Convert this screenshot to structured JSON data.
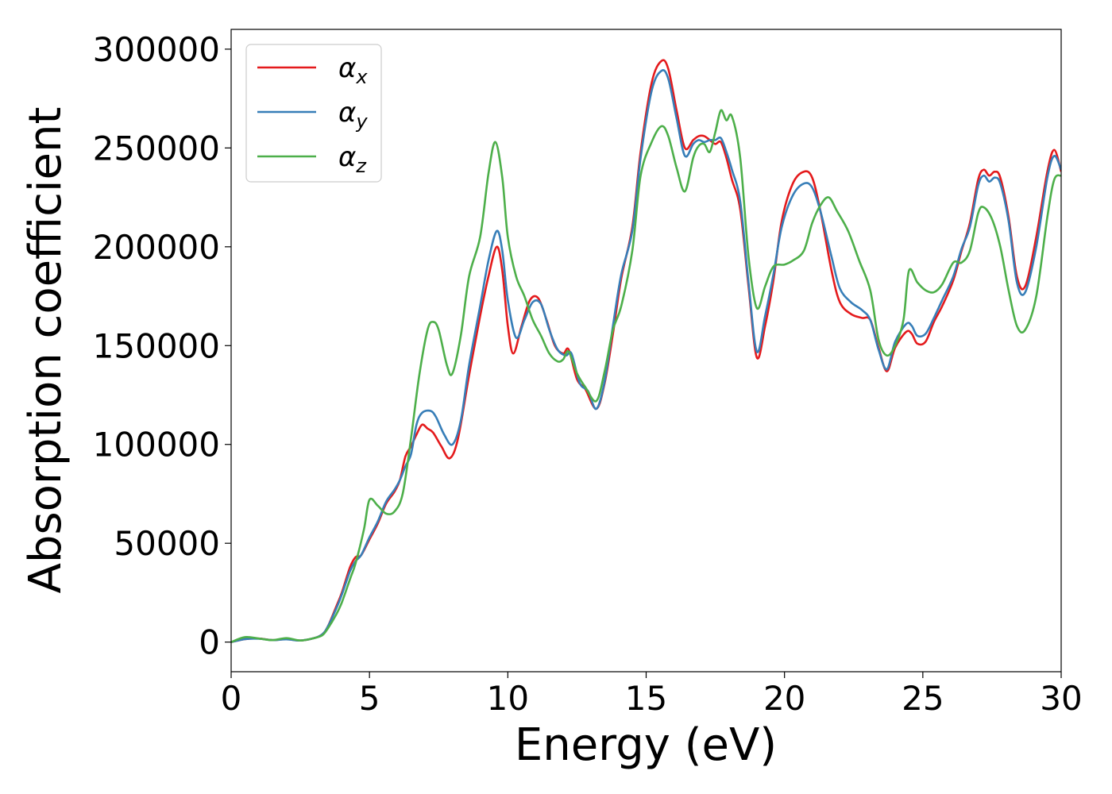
{
  "chart_data": {
    "type": "line",
    "title": "",
    "xlabel": "Energy (eV)",
    "ylabel": "Absorption coefficient",
    "xlim": [
      0,
      30
    ],
    "ylim": [
      -15000,
      310000
    ],
    "xticks": [
      0,
      5,
      10,
      15,
      20,
      25,
      30
    ],
    "yticks": [
      0,
      50000,
      100000,
      150000,
      200000,
      250000,
      300000
    ],
    "xtick_labels": [
      "0",
      "5",
      "10",
      "15",
      "20",
      "25",
      "30"
    ],
    "ytick_labels": [
      "0",
      "50000",
      "100000",
      "150000",
      "200000",
      "250000",
      "300000"
    ],
    "grid": false,
    "legend_position": "top-left",
    "series": [
      {
        "name": "αx",
        "name_base": "α",
        "name_sub": "x",
        "color": "#e41a1c",
        "points": [
          [
            0,
            0
          ],
          [
            0.5,
            1500
          ],
          [
            1,
            1800
          ],
          [
            1.5,
            1000
          ],
          [
            2,
            1500
          ],
          [
            2.5,
            800
          ],
          [
            3,
            2000
          ],
          [
            3.3,
            4000
          ],
          [
            3.5,
            8000
          ],
          [
            3.8,
            18000
          ],
          [
            4,
            25000
          ],
          [
            4.3,
            38000
          ],
          [
            4.5,
            43000
          ],
          [
            4.7,
            44000
          ],
          [
            5,
            52000
          ],
          [
            5.3,
            60000
          ],
          [
            5.6,
            70000
          ],
          [
            5.9,
            76000
          ],
          [
            6.1,
            82000
          ],
          [
            6.3,
            94000
          ],
          [
            6.5,
            99000
          ],
          [
            6.7,
            105000
          ],
          [
            6.9,
            110000
          ],
          [
            7.1,
            108000
          ],
          [
            7.3,
            106000
          ],
          [
            7.6,
            99000
          ],
          [
            7.9,
            93000
          ],
          [
            8.2,
            103000
          ],
          [
            8.6,
            135000
          ],
          [
            9,
            165000
          ],
          [
            9.3,
            185000
          ],
          [
            9.6,
            200000
          ],
          [
            9.8,
            188000
          ],
          [
            10,
            160000
          ],
          [
            10.2,
            146000
          ],
          [
            10.5,
            160000
          ],
          [
            10.8,
            173000
          ],
          [
            11.1,
            174000
          ],
          [
            11.4,
            163000
          ],
          [
            11.7,
            150000
          ],
          [
            12,
            146000
          ],
          [
            12.2,
            148000
          ],
          [
            12.5,
            133000
          ],
          [
            12.8,
            128000
          ],
          [
            13.2,
            118000
          ],
          [
            13.5,
            131000
          ],
          [
            13.8,
            156000
          ],
          [
            14.1,
            184000
          ],
          [
            14.5,
            210000
          ],
          [
            14.8,
            248000
          ],
          [
            15.2,
            283000
          ],
          [
            15.55,
            294000
          ],
          [
            15.8,
            290000
          ],
          [
            16.1,
            269000
          ],
          [
            16.4,
            250000
          ],
          [
            16.7,
            254000
          ],
          [
            16.9,
            256000
          ],
          [
            17.1,
            256000
          ],
          [
            17.3,
            254000
          ],
          [
            17.5,
            252000
          ],
          [
            17.7,
            253000
          ],
          [
            17.9,
            245000
          ],
          [
            18.1,
            234000
          ],
          [
            18.4,
            219000
          ],
          [
            18.7,
            180000
          ],
          [
            19,
            144000
          ],
          [
            19.3,
            160000
          ],
          [
            19.6,
            183000
          ],
          [
            19.9,
            213000
          ],
          [
            20.3,
            232000
          ],
          [
            20.7,
            238000
          ],
          [
            21,
            235000
          ],
          [
            21.3,
            218000
          ],
          [
            21.7,
            188000
          ],
          [
            22,
            172000
          ],
          [
            22.4,
            166000
          ],
          [
            22.8,
            164000
          ],
          [
            23.1,
            163000
          ],
          [
            23.4,
            149000
          ],
          [
            23.7,
            137000
          ],
          [
            24,
            149000
          ],
          [
            24.4,
            157000
          ],
          [
            24.6,
            156000
          ],
          [
            24.8,
            151000
          ],
          [
            25.1,
            152000
          ],
          [
            25.4,
            162000
          ],
          [
            25.7,
            170000
          ],
          [
            26.1,
            183000
          ],
          [
            26.4,
            198000
          ],
          [
            26.7,
            212000
          ],
          [
            27,
            234000
          ],
          [
            27.2,
            239000
          ],
          [
            27.4,
            236000
          ],
          [
            27.6,
            238000
          ],
          [
            27.8,
            235000
          ],
          [
            28.1,
            215000
          ],
          [
            28.4,
            185000
          ],
          [
            28.7,
            180000
          ],
          [
            29.1,
            205000
          ],
          [
            29.5,
            238000
          ],
          [
            29.75,
            249000
          ],
          [
            30,
            238000
          ]
        ]
      },
      {
        "name": "αy",
        "name_base": "α",
        "name_sub": "y",
        "color": "#377eb8",
        "points": [
          [
            0,
            0
          ],
          [
            0.5,
            1500
          ],
          [
            1,
            1700
          ],
          [
            1.5,
            1000
          ],
          [
            2,
            1400
          ],
          [
            2.5,
            800
          ],
          [
            3,
            2000
          ],
          [
            3.3,
            4000
          ],
          [
            3.5,
            8000
          ],
          [
            3.8,
            17000
          ],
          [
            4,
            24000
          ],
          [
            4.3,
            36000
          ],
          [
            4.5,
            41000
          ],
          [
            4.7,
            44000
          ],
          [
            5,
            53000
          ],
          [
            5.3,
            61000
          ],
          [
            5.6,
            71000
          ],
          [
            5.9,
            77000
          ],
          [
            6.1,
            82000
          ],
          [
            6.3,
            89000
          ],
          [
            6.5,
            95000
          ],
          [
            6.7,
            110000
          ],
          [
            6.9,
            116000
          ],
          [
            7.2,
            117000
          ],
          [
            7.4,
            114000
          ],
          [
            7.7,
            105000
          ],
          [
            8,
            100000
          ],
          [
            8.3,
            112000
          ],
          [
            8.6,
            140000
          ],
          [
            9,
            170000
          ],
          [
            9.3,
            193000
          ],
          [
            9.6,
            208000
          ],
          [
            9.8,
            198000
          ],
          [
            10,
            173000
          ],
          [
            10.3,
            154000
          ],
          [
            10.6,
            163000
          ],
          [
            10.9,
            172000
          ],
          [
            11.2,
            171000
          ],
          [
            11.5,
            158000
          ],
          [
            11.8,
            148000
          ],
          [
            12.1,
            145000
          ],
          [
            12.3,
            146000
          ],
          [
            12.6,
            131000
          ],
          [
            12.9,
            127000
          ],
          [
            13.2,
            118000
          ],
          [
            13.5,
            132000
          ],
          [
            13.8,
            160000
          ],
          [
            14.1,
            186000
          ],
          [
            14.5,
            208000
          ],
          [
            14.8,
            245000
          ],
          [
            15.2,
            279000
          ],
          [
            15.55,
            289000
          ],
          [
            15.8,
            285000
          ],
          [
            16.1,
            265000
          ],
          [
            16.4,
            246000
          ],
          [
            16.7,
            252000
          ],
          [
            16.9,
            254000
          ],
          [
            17.1,
            253000
          ],
          [
            17.3,
            254000
          ],
          [
            17.5,
            254000
          ],
          [
            17.7,
            255000
          ],
          [
            17.9,
            248000
          ],
          [
            18.1,
            239000
          ],
          [
            18.4,
            223000
          ],
          [
            18.7,
            182000
          ],
          [
            19,
            147000
          ],
          [
            19.3,
            165000
          ],
          [
            19.6,
            186000
          ],
          [
            19.9,
            210000
          ],
          [
            20.3,
            226000
          ],
          [
            20.7,
            232000
          ],
          [
            21,
            230000
          ],
          [
            21.3,
            218000
          ],
          [
            21.7,
            195000
          ],
          [
            22,
            179000
          ],
          [
            22.4,
            172000
          ],
          [
            22.8,
            168000
          ],
          [
            23.1,
            163000
          ],
          [
            23.4,
            148000
          ],
          [
            23.7,
            138000
          ],
          [
            24,
            152000
          ],
          [
            24.4,
            161000
          ],
          [
            24.6,
            160000
          ],
          [
            24.8,
            155000
          ],
          [
            25.1,
            156000
          ],
          [
            25.4,
            164000
          ],
          [
            25.7,
            173000
          ],
          [
            26.1,
            185000
          ],
          [
            26.4,
            199000
          ],
          [
            26.7,
            210000
          ],
          [
            27,
            231000
          ],
          [
            27.2,
            236000
          ],
          [
            27.4,
            233000
          ],
          [
            27.6,
            235000
          ],
          [
            27.8,
            232000
          ],
          [
            28.1,
            213000
          ],
          [
            28.4,
            182000
          ],
          [
            28.7,
            177000
          ],
          [
            29.1,
            200000
          ],
          [
            29.5,
            235000
          ],
          [
            29.75,
            246000
          ],
          [
            30,
            239000
          ]
        ]
      },
      {
        "name": "αz",
        "name_base": "α",
        "name_sub": "z",
        "color": "#4daf4a",
        "points": [
          [
            0,
            0
          ],
          [
            0.5,
            2500
          ],
          [
            1,
            1800
          ],
          [
            1.5,
            1000
          ],
          [
            2,
            2000
          ],
          [
            2.5,
            800
          ],
          [
            3,
            2000
          ],
          [
            3.3,
            3500
          ],
          [
            3.5,
            7000
          ],
          [
            3.8,
            14000
          ],
          [
            4,
            20000
          ],
          [
            4.3,
            32000
          ],
          [
            4.5,
            40000
          ],
          [
            4.8,
            57000
          ],
          [
            5,
            72000
          ],
          [
            5.3,
            69000
          ],
          [
            5.6,
            65000
          ],
          [
            5.9,
            66000
          ],
          [
            6.2,
            75000
          ],
          [
            6.5,
            103000
          ],
          [
            6.8,
            135000
          ],
          [
            7.1,
            158000
          ],
          [
            7.3,
            162000
          ],
          [
            7.5,
            158000
          ],
          [
            7.8,
            140000
          ],
          [
            8,
            136000
          ],
          [
            8.3,
            155000
          ],
          [
            8.6,
            185000
          ],
          [
            9,
            205000
          ],
          [
            9.3,
            237000
          ],
          [
            9.55,
            253000
          ],
          [
            9.8,
            235000
          ],
          [
            10,
            205000
          ],
          [
            10.3,
            185000
          ],
          [
            10.6,
            175000
          ],
          [
            10.9,
            163000
          ],
          [
            11.2,
            155000
          ],
          [
            11.5,
            146000
          ],
          [
            11.8,
            142000
          ],
          [
            12,
            143000
          ],
          [
            12.2,
            147000
          ],
          [
            12.5,
            136000
          ],
          [
            12.8,
            129000
          ],
          [
            13.2,
            122000
          ],
          [
            13.5,
            137000
          ],
          [
            13.8,
            158000
          ],
          [
            14.1,
            170000
          ],
          [
            14.5,
            198000
          ],
          [
            14.8,
            236000
          ],
          [
            15.2,
            253000
          ],
          [
            15.55,
            261000
          ],
          [
            15.8,
            256000
          ],
          [
            16.1,
            240000
          ],
          [
            16.4,
            228000
          ],
          [
            16.7,
            245000
          ],
          [
            16.9,
            251000
          ],
          [
            17.1,
            252000
          ],
          [
            17.3,
            248000
          ],
          [
            17.5,
            258000
          ],
          [
            17.7,
            269000
          ],
          [
            17.9,
            264000
          ],
          [
            18.1,
            266000
          ],
          [
            18.4,
            245000
          ],
          [
            18.7,
            195000
          ],
          [
            19,
            169000
          ],
          [
            19.3,
            180000
          ],
          [
            19.6,
            190000
          ],
          [
            20,
            191000
          ],
          [
            20.3,
            193000
          ],
          [
            20.7,
            198000
          ],
          [
            21,
            212000
          ],
          [
            21.3,
            221000
          ],
          [
            21.6,
            225000
          ],
          [
            21.9,
            218000
          ],
          [
            22.3,
            208000
          ],
          [
            22.7,
            193000
          ],
          [
            23.1,
            178000
          ],
          [
            23.4,
            153000
          ],
          [
            23.7,
            145000
          ],
          [
            24,
            150000
          ],
          [
            24.3,
            163000
          ],
          [
            24.5,
            188000
          ],
          [
            24.8,
            182000
          ],
          [
            25.1,
            178000
          ],
          [
            25.4,
            177000
          ],
          [
            25.7,
            181000
          ],
          [
            26.1,
            192000
          ],
          [
            26.4,
            192000
          ],
          [
            26.7,
            198000
          ],
          [
            27,
            217000
          ],
          [
            27.2,
            220000
          ],
          [
            27.5,
            214000
          ],
          [
            27.8,
            200000
          ],
          [
            28.1,
            178000
          ],
          [
            28.4,
            160000
          ],
          [
            28.7,
            158000
          ],
          [
            29.1,
            175000
          ],
          [
            29.5,
            215000
          ],
          [
            29.75,
            234000
          ],
          [
            30,
            236000
          ]
        ]
      }
    ]
  }
}
